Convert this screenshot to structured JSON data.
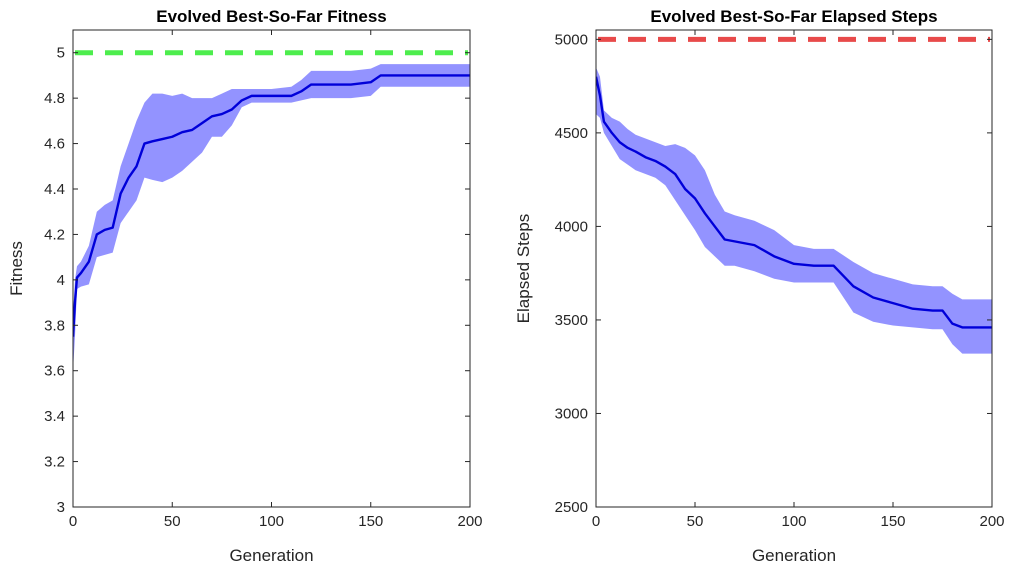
{
  "chart_data": [
    {
      "type": "line",
      "title": "Evolved Best-So-Far Fitness",
      "xlabel": "Generation",
      "ylabel": "Fitness",
      "xlim": [
        0,
        200
      ],
      "ylim": [
        3,
        5.1
      ],
      "xticks": [
        0,
        50,
        100,
        150,
        200
      ],
      "yticks": [
        3,
        3.2,
        3.4,
        3.6,
        3.8,
        4,
        4.2,
        4.4,
        4.6,
        4.8,
        5
      ],
      "ytick_labels": [
        "3",
        "3.2",
        "3.4",
        "3.6",
        "3.8",
        "4",
        "4.2",
        "4.4",
        "4.6",
        "4.8",
        "5"
      ],
      "grid": false,
      "reference_line": {
        "y": 5,
        "color": "#4ded4d",
        "style": "dashed"
      },
      "band_color": "#8080ff",
      "line_color": "#0000d9",
      "x": [
        0,
        1,
        2,
        4,
        8,
        12,
        16,
        20,
        24,
        28,
        32,
        36,
        40,
        45,
        50,
        55,
        60,
        65,
        70,
        75,
        80,
        85,
        90,
        100,
        110,
        115,
        120,
        130,
        140,
        150,
        155,
        160,
        170,
        180,
        190,
        200
      ],
      "mean": [
        3.75,
        3.9,
        4.01,
        4.03,
        4.08,
        4.2,
        4.22,
        4.23,
        4.38,
        4.45,
        4.5,
        4.6,
        4.61,
        4.62,
        4.63,
        4.65,
        4.66,
        4.69,
        4.72,
        4.73,
        4.75,
        4.79,
        4.81,
        4.81,
        4.81,
        4.83,
        4.86,
        4.86,
        4.86,
        4.87,
        4.9,
        4.9,
        4.9,
        4.9,
        4.9,
        4.9
      ],
      "upper": [
        3.85,
        4.0,
        4.06,
        4.08,
        4.15,
        4.3,
        4.33,
        4.35,
        4.5,
        4.6,
        4.7,
        4.78,
        4.82,
        4.82,
        4.81,
        4.82,
        4.8,
        4.8,
        4.8,
        4.82,
        4.84,
        4.84,
        4.84,
        4.84,
        4.85,
        4.88,
        4.92,
        4.92,
        4.92,
        4.93,
        4.95,
        4.95,
        4.95,
        4.95,
        4.95,
        4.95
      ],
      "lower": [
        3.6,
        3.75,
        3.96,
        3.97,
        3.98,
        4.1,
        4.11,
        4.12,
        4.25,
        4.3,
        4.35,
        4.45,
        4.44,
        4.43,
        4.45,
        4.48,
        4.52,
        4.56,
        4.63,
        4.63,
        4.68,
        4.76,
        4.78,
        4.78,
        4.78,
        4.79,
        4.8,
        4.8,
        4.8,
        4.81,
        4.85,
        4.85,
        4.85,
        4.85,
        4.85,
        4.85
      ]
    },
    {
      "type": "line",
      "title": "Evolved Best-So-Far Elapsed Steps",
      "xlabel": "Generation",
      "ylabel": "Elapsed Steps",
      "xlim": [
        0,
        200
      ],
      "ylim": [
        2500,
        5050
      ],
      "xticks": [
        0,
        50,
        100,
        150,
        200
      ],
      "yticks": [
        2500,
        3000,
        3500,
        4000,
        4500,
        5000
      ],
      "ytick_labels": [
        "2500",
        "3000",
        "3500",
        "4000",
        "4500",
        "5000"
      ],
      "grid": false,
      "reference_line": {
        "y": 5000,
        "color": "#e84a4a",
        "style": "dashed"
      },
      "band_color": "#8080ff",
      "line_color": "#0000d9",
      "x": [
        0,
        2,
        4,
        8,
        12,
        16,
        20,
        25,
        30,
        35,
        40,
        45,
        50,
        55,
        60,
        65,
        70,
        80,
        90,
        100,
        110,
        120,
        130,
        140,
        150,
        160,
        170,
        175,
        180,
        185,
        190,
        200
      ],
      "mean": [
        4800,
        4700,
        4560,
        4500,
        4450,
        4420,
        4400,
        4370,
        4350,
        4320,
        4280,
        4200,
        4150,
        4070,
        4000,
        3930,
        3920,
        3900,
        3840,
        3800,
        3790,
        3790,
        3680,
        3620,
        3590,
        3560,
        3550,
        3550,
        3480,
        3460,
        3460,
        3460
      ],
      "upper": [
        4850,
        4800,
        4620,
        4580,
        4560,
        4520,
        4490,
        4470,
        4450,
        4430,
        4440,
        4420,
        4380,
        4300,
        4170,
        4080,
        4060,
        4030,
        3980,
        3900,
        3880,
        3880,
        3810,
        3750,
        3720,
        3690,
        3680,
        3680,
        3640,
        3610,
        3610,
        3610
      ],
      "lower": [
        4600,
        4580,
        4500,
        4430,
        4360,
        4330,
        4300,
        4280,
        4260,
        4220,
        4140,
        4060,
        3980,
        3890,
        3840,
        3790,
        3790,
        3760,
        3720,
        3700,
        3700,
        3700,
        3540,
        3490,
        3470,
        3460,
        3450,
        3450,
        3370,
        3320,
        3320,
        3320
      ]
    }
  ]
}
